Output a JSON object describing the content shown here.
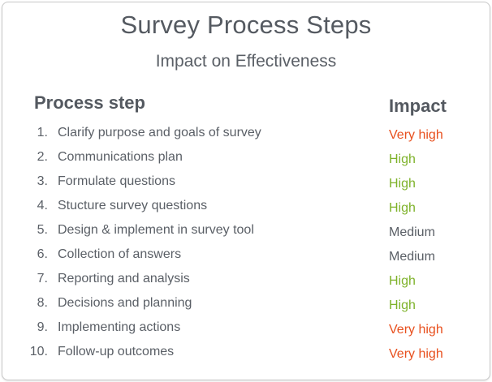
{
  "title": "Survey Process Steps",
  "subtitle": "Impact on Effectiveness",
  "headers": {
    "step": "Process step",
    "impact": "Impact"
  },
  "colors": {
    "very_high": "#e8501e",
    "high": "#7eb22a",
    "medium": "#5a5f66"
  },
  "rows": [
    {
      "num": "1.",
      "step": "Clarify purpose and goals of survey",
      "impact": "Very high",
      "level": "very_high"
    },
    {
      "num": "2.",
      "step": "Communications plan",
      "impact": "High",
      "level": "high"
    },
    {
      "num": "3.",
      "step": "Formulate questions",
      "impact": "High",
      "level": "high"
    },
    {
      "num": "4.",
      "step": "Stucture survey questions",
      "impact": "High",
      "level": "high"
    },
    {
      "num": "5.",
      "step": "Design & implement in survey tool",
      "impact": "Medium",
      "level": "medium"
    },
    {
      "num": "6.",
      "step": "Collection of answers",
      "impact": "Medium",
      "level": "medium"
    },
    {
      "num": "7.",
      "step": "Reporting and analysis",
      "impact": "High",
      "level": "high"
    },
    {
      "num": "8.",
      "step": "Decisions and planning",
      "impact": "High",
      "level": "high"
    },
    {
      "num": "9.",
      "step": "Implementing actions",
      "impact": "Very high",
      "level": "very_high"
    },
    {
      "num": "10.",
      "step": "Follow-up outcomes",
      "impact": "Very high",
      "level": "very_high"
    }
  ]
}
